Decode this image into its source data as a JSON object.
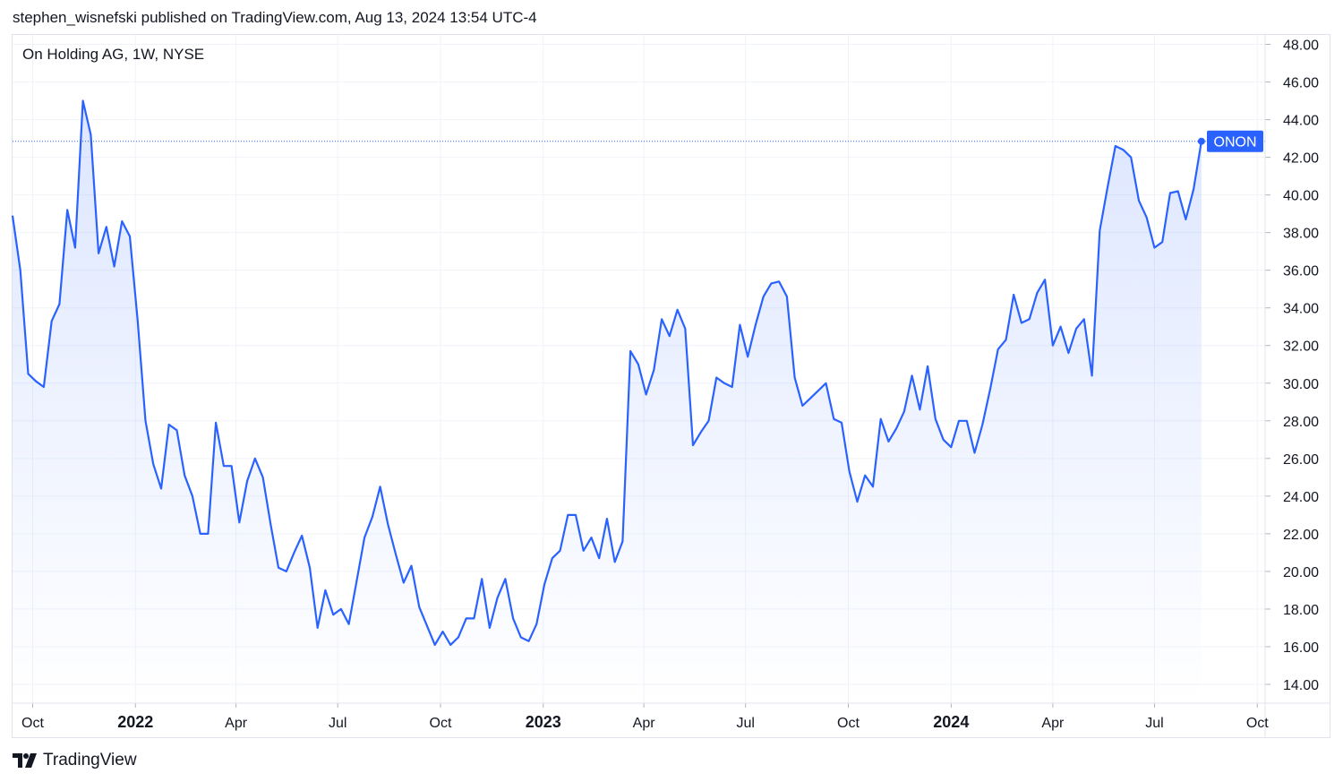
{
  "header": {
    "publish_line": "stephen_wisnefski published on TradingView.com, Aug 13, 2024 13:54 UTC-4"
  },
  "footer": {
    "brand": "TradingView",
    "logo_icon": "tradingview-logo-icon"
  },
  "colors": {
    "line": "#2962ff",
    "grid": "#f0f3fa",
    "text": "#131722",
    "badge_bg": "#2962ff",
    "badge_text": "#ffffff"
  },
  "chart_data": {
    "type": "area",
    "symbol_title": "On Holding AG, 1W, NYSE",
    "series": [
      {
        "name": "ONON",
        "values": [
          38.9,
          36.0,
          30.5,
          30.1,
          29.8,
          33.3,
          34.2,
          39.2,
          37.2,
          45.0,
          43.2,
          36.9,
          38.3,
          36.2,
          38.6,
          37.8,
          33.3,
          28.0,
          25.7,
          24.4,
          27.8,
          27.5,
          25.1,
          24.0,
          22.0,
          22.0,
          27.9,
          25.6,
          25.6,
          22.6,
          24.8,
          26.0,
          25.0,
          22.5,
          20.2,
          20.0,
          21.0,
          21.9,
          20.2,
          17.0,
          19.0,
          17.7,
          18.0,
          17.2,
          19.5,
          21.8,
          22.9,
          24.5,
          22.5,
          20.9,
          19.4,
          20.3,
          18.1,
          17.1,
          16.1,
          16.8,
          16.1,
          16.5,
          17.5,
          17.5,
          19.6,
          17.0,
          18.6,
          19.6,
          17.5,
          16.5,
          16.3,
          17.2,
          19.3,
          20.7,
          21.1,
          23.0,
          23.0,
          21.1,
          21.8,
          20.7,
          22.8,
          20.5,
          21.6,
          31.7,
          31.0,
          29.4,
          30.7,
          33.4,
          32.5,
          33.9,
          32.9,
          26.7,
          27.4,
          28.0,
          30.3,
          30.0,
          29.8,
          33.1,
          31.4,
          33.1,
          34.6,
          35.3,
          35.4,
          34.6,
          30.3,
          28.8,
          29.2,
          29.6,
          30.0,
          28.1,
          27.9,
          25.3,
          23.7,
          25.1,
          24.5,
          28.1,
          26.9,
          27.6,
          28.5,
          30.4,
          28.6,
          30.9,
          28.1,
          27.0,
          26.6,
          28.0,
          28.0,
          26.3,
          27.8,
          29.7,
          31.8,
          32.3,
          34.7,
          33.2,
          33.4,
          34.8,
          35.5,
          32.0,
          33.0,
          31.6,
          32.9,
          33.4,
          30.4,
          38.1,
          40.4,
          42.6,
          42.4,
          42.0,
          39.7,
          38.8,
          37.2,
          37.5,
          40.1,
          40.2,
          38.7,
          40.3,
          42.85
        ]
      }
    ],
    "last_value": 42.85,
    "last_label": "ONON",
    "x_start": "2021-09-13",
    "x_interval": "1W",
    "x_tick_labels": [
      {
        "label": "Oct",
        "date": "2021-10-01",
        "bold": false
      },
      {
        "label": "2022",
        "date": "2022-01-01",
        "bold": true
      },
      {
        "label": "Apr",
        "date": "2022-04-01",
        "bold": false
      },
      {
        "label": "Jul",
        "date": "2022-07-01",
        "bold": false
      },
      {
        "label": "Oct",
        "date": "2022-10-01",
        "bold": false
      },
      {
        "label": "2023",
        "date": "2023-01-01",
        "bold": true
      },
      {
        "label": "Apr",
        "date": "2023-04-01",
        "bold": false
      },
      {
        "label": "Jul",
        "date": "2023-07-01",
        "bold": false
      },
      {
        "label": "Oct",
        "date": "2023-10-01",
        "bold": false
      },
      {
        "label": "2024",
        "date": "2024-01-01",
        "bold": true
      },
      {
        "label": "Apr",
        "date": "2024-04-01",
        "bold": false
      },
      {
        "label": "Jul",
        "date": "2024-07-01",
        "bold": false
      },
      {
        "label": "Oct",
        "date": "2024-10-01",
        "bold": false
      }
    ],
    "y_ticks": [
      "14.00",
      "16.00",
      "18.00",
      "20.00",
      "22.00",
      "24.00",
      "26.00",
      "28.00",
      "30.00",
      "32.00",
      "34.00",
      "36.00",
      "38.00",
      "40.00",
      "42.00",
      "44.00",
      "46.00",
      "48.00"
    ],
    "ylim": [
      13.0,
      48.5
    ],
    "x_range": [
      "2021-09-13",
      "2024-10-08"
    ],
    "grid": true,
    "y_axis_position": "right"
  }
}
